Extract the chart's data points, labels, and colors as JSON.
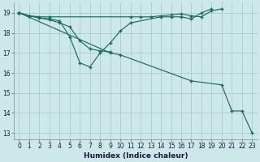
{
  "xlabel": "Humidex (Indice chaleur)",
  "bg_color": "#cce8e8",
  "grid_color": "#aacccc",
  "line_color": "#1e6b5e",
  "xlim": [
    -0.5,
    23.5
  ],
  "ylim": [
    12.7,
    19.5
  ],
  "xticks": [
    0,
    1,
    2,
    3,
    4,
    5,
    6,
    7,
    8,
    9,
    10,
    11,
    12,
    13,
    14,
    15,
    16,
    17,
    18,
    19,
    20,
    21,
    22,
    23
  ],
  "yticks": [
    13,
    14,
    15,
    16,
    17,
    18,
    19
  ],
  "lines": [
    {
      "x": [
        0,
        1,
        2,
        3,
        11,
        12,
        13,
        14,
        15,
        16,
        17,
        18,
        19,
        20
      ],
      "y": [
        19,
        18.85,
        18.8,
        18.8,
        18.8,
        18.8,
        18.8,
        18.85,
        18.9,
        18.95,
        18.85,
        18.8,
        19.1,
        19.2
      ]
    },
    {
      "x": [
        0,
        1,
        2,
        3,
        4,
        5,
        6,
        7,
        8,
        9,
        10,
        11,
        14,
        15,
        16,
        17,
        18,
        19
      ],
      "y": [
        19,
        18.85,
        18.75,
        18.7,
        18.6,
        17.8,
        16.5,
        16.3,
        17.0,
        17.5,
        18.1,
        18.5,
        18.8,
        18.8,
        18.8,
        18.7,
        19.0,
        19.2
      ]
    },
    {
      "x": [
        0,
        1,
        2,
        3,
        4,
        5,
        6,
        7,
        8,
        9
      ],
      "y": [
        19,
        18.85,
        18.75,
        18.65,
        18.5,
        18.3,
        17.6,
        17.2,
        17.1,
        17.05
      ]
    },
    {
      "x": [
        0,
        9,
        10,
        17,
        20,
        21,
        22,
        23
      ],
      "y": [
        19,
        17.0,
        16.9,
        15.6,
        15.4,
        14.1,
        14.1,
        13.0
      ]
    }
  ]
}
